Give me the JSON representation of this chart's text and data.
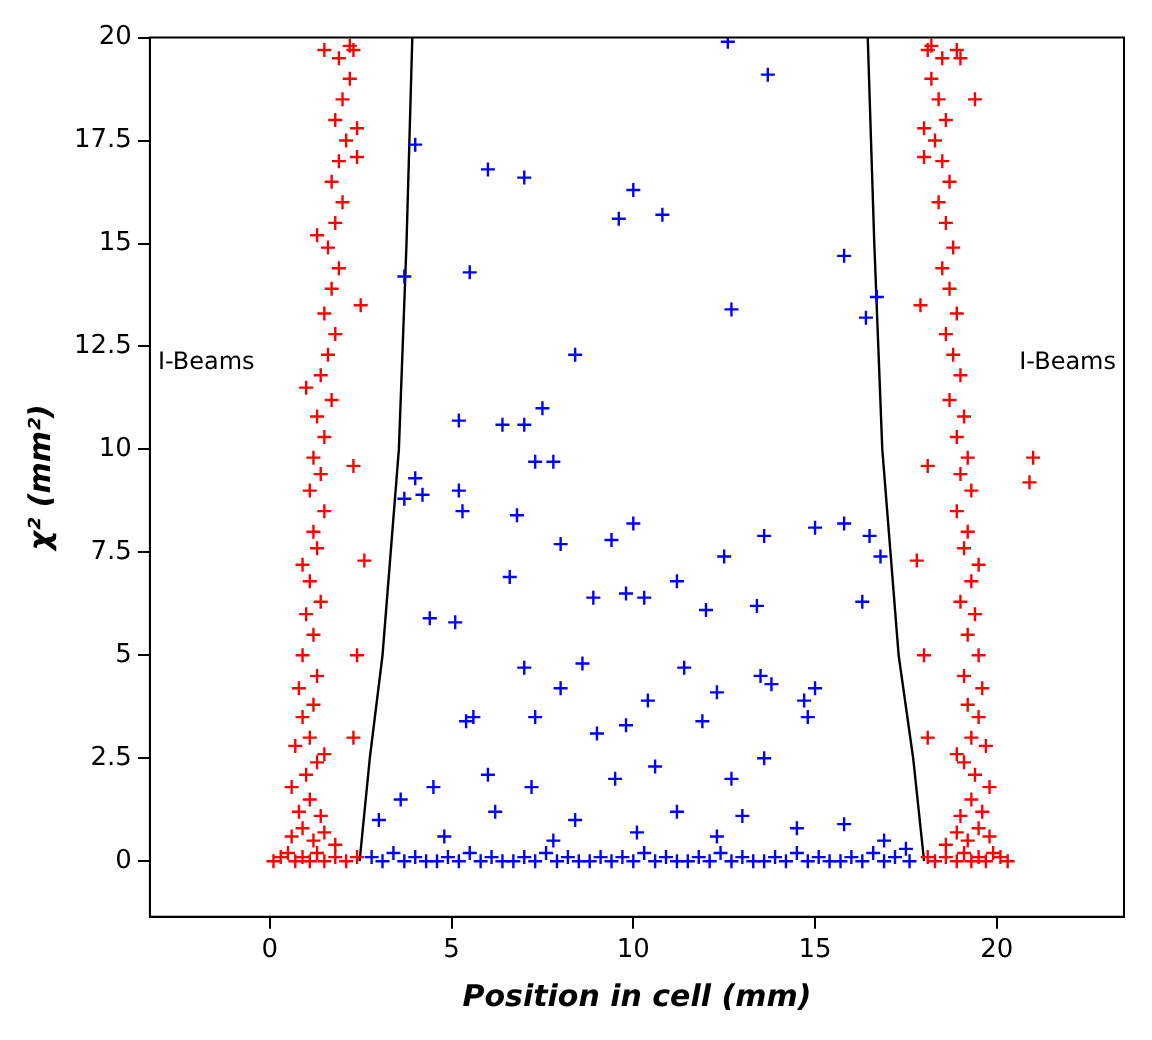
{
  "chart_data": {
    "type": "scatter",
    "xlabel": "Position in cell (mm)",
    "ylabel": "χ² (mm²)",
    "xlim": [
      -3.3,
      23.5
    ],
    "ylim": [
      -1.35,
      20
    ],
    "xticks": [
      0,
      5,
      10,
      15,
      20
    ],
    "yticks": [
      0,
      2.5,
      5,
      7.5,
      10,
      12.5,
      15,
      17.5,
      20
    ],
    "grid": false,
    "legend": false,
    "marker": "cross",
    "annotations": [
      "I-Beams",
      "I-Beams"
    ],
    "series": [
      {
        "type": "scatter",
        "color": "#ff0000",
        "x": [
          0.1,
          0.3,
          0.5,
          0.7,
          0.9,
          1.1,
          1.3,
          1.5,
          1.8,
          2.1,
          2.4,
          0.6,
          0.9,
          1.2,
          1.5,
          1.8,
          0.8,
          1.1,
          1.4,
          0.6,
          1.0,
          1.3,
          0.7,
          1.1,
          1.5,
          0.9,
          1.2,
          0.8,
          1.3,
          0.9,
          1.2,
          1.0,
          1.4,
          1.1,
          0.9,
          1.3,
          1.2,
          1.5,
          1.1,
          1.4,
          1.2,
          1.5,
          1.3,
          1.7,
          1.4,
          1.6,
          1.8,
          1.5,
          1.7,
          1.9,
          1.6,
          1.8,
          2.0,
          1.7,
          1.9,
          2.1,
          1.8,
          2.0,
          2.2,
          1.9,
          2.2,
          1.5,
          2.4,
          2.3,
          2.5,
          2.3,
          2.6,
          2.4,
          2.3,
          2.4,
          1.0,
          1.3,
          20.3,
          20.1,
          19.9,
          19.7,
          19.5,
          19.3,
          19.1,
          18.9,
          18.6,
          18.3,
          18.1,
          19.8,
          19.5,
          19.2,
          18.9,
          18.6,
          19.6,
          19.3,
          19.0,
          19.8,
          19.4,
          19.1,
          19.7,
          19.3,
          18.9,
          19.5,
          19.2,
          19.6,
          19.1,
          19.5,
          19.2,
          19.4,
          19.0,
          19.3,
          19.5,
          19.1,
          19.2,
          18.9,
          19.3,
          19.0,
          19.2,
          18.9,
          19.1,
          18.7,
          19.0,
          18.8,
          18.6,
          18.9,
          18.7,
          18.5,
          18.8,
          18.6,
          18.4,
          18.7,
          18.5,
          18.3,
          18.6,
          18.4,
          18.2,
          18.5,
          18.2,
          18.9,
          18.0,
          18.1,
          17.9,
          18.1,
          17.8,
          18.0,
          18.1,
          18.0,
          21.0,
          20.9,
          19.0,
          19.4
        ],
        "values": [
          0,
          0.1,
          0.2,
          0,
          0.1,
          0,
          0.2,
          0,
          0.1,
          0,
          0.1,
          0.6,
          0.8,
          0.5,
          0.7,
          0.4,
          1.2,
          1.5,
          1.1,
          1.8,
          2.1,
          2.4,
          2.8,
          3.0,
          2.6,
          3.5,
          3.8,
          4.2,
          4.5,
          5.0,
          5.5,
          6.0,
          6.3,
          6.8,
          7.2,
          7.6,
          8.0,
          8.5,
          9.0,
          9.4,
          9.8,
          10.3,
          10.8,
          11.2,
          11.8,
          12.3,
          12.8,
          13.3,
          13.9,
          14.4,
          14.9,
          15.5,
          16.0,
          16.5,
          17.0,
          17.5,
          18.0,
          18.5,
          19.0,
          19.5,
          19.8,
          19.7,
          17.8,
          19.7,
          13.5,
          9.6,
          7.3,
          5.0,
          3.0,
          17.1,
          11.5,
          15.2,
          0,
          0.1,
          0.2,
          0,
          0.1,
          0,
          0.2,
          0,
          0.1,
          0,
          0.1,
          0.6,
          0.8,
          0.5,
          0.7,
          0.4,
          1.2,
          1.5,
          1.1,
          1.8,
          2.1,
          2.4,
          2.8,
          3.0,
          2.6,
          3.5,
          3.8,
          4.2,
          4.5,
          5.0,
          5.5,
          6.0,
          6.3,
          6.8,
          7.2,
          7.6,
          8.0,
          8.5,
          9.0,
          9.4,
          9.8,
          10.3,
          10.8,
          11.2,
          11.8,
          12.3,
          12.8,
          13.3,
          13.9,
          14.4,
          14.9,
          15.5,
          16.0,
          16.5,
          17.0,
          17.5,
          18.0,
          18.5,
          19.0,
          19.5,
          19.8,
          19.7,
          17.8,
          19.7,
          13.5,
          9.6,
          7.3,
          5.0,
          3.0,
          17.1,
          9.8,
          9.2,
          19.5,
          18.5
        ]
      },
      {
        "type": "scatter",
        "color": "#0000ff",
        "x": [
          2.8,
          3.1,
          3.4,
          3.7,
          4.0,
          4.3,
          4.6,
          4.9,
          5.2,
          5.5,
          5.8,
          6.1,
          6.4,
          6.7,
          7.0,
          7.3,
          7.6,
          7.9,
          8.2,
          8.5,
          8.8,
          9.1,
          9.4,
          9.7,
          10.0,
          10.3,
          10.6,
          10.9,
          11.2,
          11.5,
          11.8,
          12.1,
          12.4,
          12.7,
          13.0,
          13.3,
          13.6,
          13.9,
          14.2,
          14.5,
          14.8,
          15.1,
          15.4,
          15.7,
          16.0,
          16.3,
          16.6,
          16.9,
          17.2,
          17.6,
          4.0,
          5.5,
          3.7,
          6.0,
          7.0,
          9.6,
          10.0,
          10.8,
          12.6,
          13.7,
          12.7,
          15.8,
          16.4,
          16.7,
          8.4,
          6.4,
          5.2,
          7.0,
          7.3,
          7.8,
          7.5,
          4.0,
          4.2,
          5.2,
          5.3,
          3.7,
          6.8,
          8.0,
          9.4,
          10.0,
          12.5,
          13.6,
          15.0,
          15.8,
          16.5,
          16.8,
          4.4,
          5.1,
          6.6,
          8.9,
          9.8,
          10.3,
          11.2,
          12.0,
          13.4,
          16.3,
          7.0,
          8.0,
          8.6,
          10.4,
          11.4,
          12.3,
          13.5,
          13.8,
          14.7,
          15.0,
          5.4,
          5.6,
          7.3,
          9.0,
          9.8,
          11.9,
          14.8,
          6.0,
          7.2,
          9.5,
          10.6,
          12.7,
          13.6,
          4.5,
          3.6,
          6.2,
          8.4,
          11.2,
          13.0,
          14.5,
          15.8,
          3.0,
          4.8,
          7.8,
          10.1,
          12.3,
          16.9,
          17.5
        ],
        "values": [
          0.1,
          0,
          0.2,
          0,
          0.1,
          0,
          0,
          0.1,
          0,
          0.2,
          0,
          0.1,
          0,
          0,
          0.1,
          0,
          0.2,
          0,
          0.1,
          0,
          0,
          0.1,
          0,
          0.1,
          0,
          0.2,
          0,
          0.1,
          0,
          0,
          0.1,
          0,
          0.2,
          0,
          0.1,
          0,
          0,
          0.1,
          0,
          0.2,
          0,
          0.1,
          0,
          0,
          0.1,
          0,
          0.2,
          0,
          0.1,
          0,
          17.4,
          14.3,
          14.2,
          16.8,
          16.6,
          15.6,
          16.3,
          15.7,
          19.9,
          19.1,
          13.4,
          14.7,
          13.2,
          13.7,
          12.3,
          10.6,
          10.7,
          10.6,
          9.7,
          9.7,
          11.0,
          9.3,
          8.9,
          9.0,
          8.5,
          8.8,
          8.4,
          7.7,
          7.8,
          8.2,
          7.4,
          7.9,
          8.1,
          8.2,
          7.9,
          7.4,
          5.9,
          5.8,
          6.9,
          6.4,
          6.5,
          6.4,
          6.8,
          6.1,
          6.2,
          6.3,
          4.7,
          4.2,
          4.8,
          3.9,
          4.7,
          4.1,
          4.5,
          4.3,
          3.9,
          4.2,
          3.4,
          3.5,
          3.5,
          3.1,
          3.3,
          3.4,
          3.5,
          2.1,
          1.8,
          2.0,
          2.3,
          2.0,
          2.5,
          1.8,
          1.5,
          1.2,
          1.0,
          1.2,
          1.1,
          0.8,
          0.9,
          1.0,
          0.6,
          0.5,
          0.7,
          0.6,
          0.5,
          0.3
        ]
      },
      {
        "type": "line",
        "color": "#000000",
        "marker": "none",
        "x": [
          2.47,
          2.75,
          3.1,
          3.55,
          3.76,
          3.92
        ],
        "values": [
          0,
          2.5,
          5,
          10,
          15,
          20
        ]
      },
      {
        "type": "line",
        "color": "#000000",
        "marker": "none",
        "x": [
          18.0,
          17.7,
          17.3,
          16.85,
          16.63,
          16.45
        ],
        "values": [
          0,
          2.5,
          5,
          10,
          15,
          20
        ]
      }
    ]
  }
}
